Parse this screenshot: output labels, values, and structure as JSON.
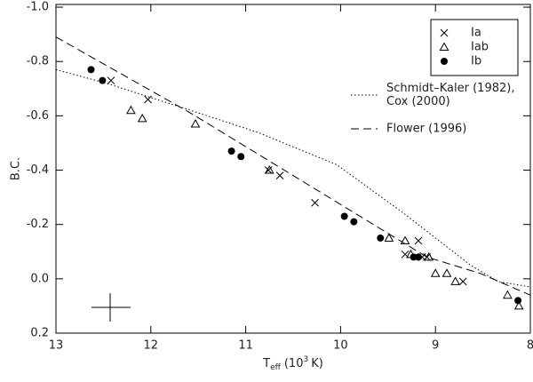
{
  "chart_data": {
    "type": "scatter",
    "xlabel": {
      "main": "T",
      "sub": "eff",
      "rest": "(10",
      "sup": "3",
      "end": "K)"
    },
    "ylabel": "B.C.",
    "xlim": [
      13,
      8
    ],
    "ylim": [
      0.2,
      -1.01
    ],
    "xticks": [
      13,
      12,
      11,
      10,
      9,
      8
    ],
    "yticks": [
      {
        "value": -1.0,
        "label": "-1.0"
      },
      -0.8,
      -0.6,
      -0.4,
      -0.2,
      {
        "value": 0.0,
        "label": "0.0"
      },
      0.2
    ],
    "color": "#000000",
    "series": [
      {
        "name": "Ia",
        "marker": "x",
        "mode": "markers",
        "x": [
          12.42,
          12.03,
          10.76,
          10.64,
          10.27,
          9.32,
          9.18,
          9.14,
          9.09,
          8.71
        ],
        "values": [
          -0.73,
          -0.66,
          -0.4,
          -0.38,
          -0.28,
          -0.09,
          -0.14,
          -0.08,
          -0.08,
          0.01
        ]
      },
      {
        "name": "Iab",
        "marker": "triangle",
        "mode": "markers",
        "x": [
          12.21,
          12.09,
          11.53,
          10.75,
          9.49,
          9.32,
          9.26,
          9.07,
          9.0,
          8.88,
          8.79,
          8.24,
          8.12
        ],
        "values": [
          -0.62,
          -0.59,
          -0.57,
          -0.4,
          -0.15,
          -0.14,
          -0.09,
          -0.08,
          -0.02,
          -0.02,
          0.01,
          0.06,
          0.1
        ]
      },
      {
        "name": "Ib",
        "marker": "circle",
        "mode": "markers",
        "x": [
          12.63,
          12.51,
          11.15,
          11.05,
          9.96,
          9.86,
          9.58,
          9.23,
          9.18,
          8.13
        ],
        "values": [
          -0.77,
          -0.73,
          -0.47,
          -0.45,
          -0.23,
          -0.21,
          -0.15,
          -0.08,
          -0.08,
          0.08
        ]
      },
      {
        "name": [
          "Schmidt–Kaler (1982),",
          "Cox (2000)"
        ],
        "mode": "line",
        "dash": "1.5 2.5",
        "x": [
          13,
          12.47,
          11.58,
          10.88,
          10.04,
          9.33,
          8.63,
          8.34,
          8.0
        ],
        "values": [
          -0.77,
          -0.72,
          -0.62,
          -0.54,
          -0.42,
          -0.24,
          -0.05,
          0.01,
          0.03
        ]
      },
      {
        "name": "Flower (1996)",
        "mode": "line",
        "dash": "9 5",
        "x": [
          13,
          11.58,
          9.09,
          8.53,
          8.0
        ],
        "values": [
          -0.89,
          -0.61,
          -0.08,
          -0.02,
          0.06
        ]
      }
    ]
  }
}
